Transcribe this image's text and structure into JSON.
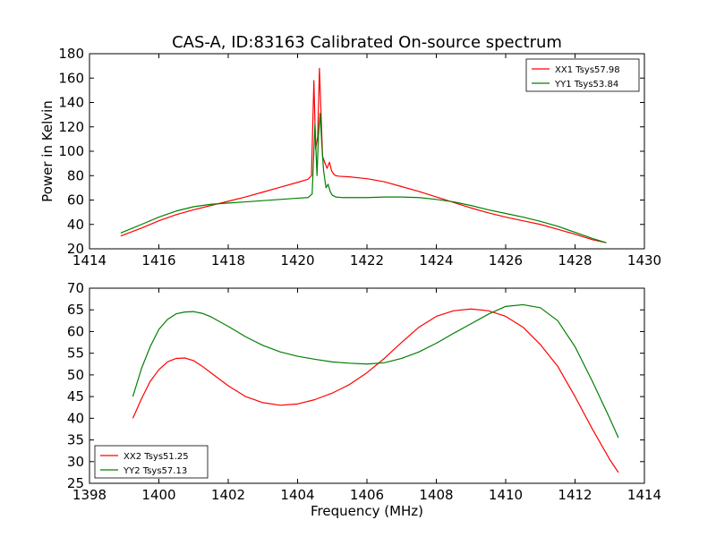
{
  "figure": {
    "title": "CAS-A, ID:83163 Calibrated On-source spectrum"
  },
  "chart_data": [
    {
      "type": "line",
      "title": "CAS-A, ID:83163 Calibrated On-source spectrum",
      "xlabel": "",
      "ylabel": "Power in Kelvin",
      "xlim": [
        1414,
        1430
      ],
      "ylim": [
        20,
        180
      ],
      "xticks": [
        1414,
        1416,
        1418,
        1420,
        1422,
        1424,
        1426,
        1428,
        1430
      ],
      "yticks": [
        20,
        40,
        60,
        80,
        100,
        120,
        140,
        160,
        180
      ],
      "grid": false,
      "legend_position": "upper right",
      "series": [
        {
          "name": "XX1 Tsys57.98",
          "color": "#ff0000",
          "x": [
            1414.9,
            1415.5,
            1416.0,
            1416.5,
            1417.0,
            1417.5,
            1418.0,
            1418.5,
            1419.0,
            1419.5,
            1420.0,
            1420.3,
            1420.4,
            1420.47,
            1420.52,
            1420.58,
            1420.63,
            1420.68,
            1420.72,
            1420.78,
            1420.85,
            1420.92,
            1420.98,
            1421.05,
            1421.1,
            1421.2,
            1421.5,
            1422.0,
            1422.5,
            1423.0,
            1423.5,
            1424.0,
            1424.5,
            1425.0,
            1425.5,
            1426.0,
            1426.5,
            1427.0,
            1427.5,
            1428.0,
            1428.5,
            1428.9
          ],
          "y": [
            30.5,
            37,
            43,
            48,
            52,
            55.5,
            59,
            62.5,
            66.5,
            70.5,
            74.5,
            77,
            80,
            158,
            102,
            112,
            168,
            128,
            96,
            91,
            86,
            91,
            84,
            81,
            80,
            79.5,
            79,
            77.5,
            75,
            71,
            67,
            62.5,
            58,
            53.5,
            49.5,
            46,
            43,
            40,
            36,
            32,
            27.5,
            25
          ]
        },
        {
          "name": "YY1 Tsys53.84",
          "color": "#008000",
          "x": [
            1414.9,
            1415.5,
            1416.0,
            1416.5,
            1417.0,
            1417.5,
            1418.0,
            1418.5,
            1419.0,
            1419.5,
            1420.0,
            1420.3,
            1420.42,
            1420.5,
            1420.56,
            1420.6,
            1420.65,
            1420.7,
            1420.75,
            1420.82,
            1420.88,
            1420.94,
            1421.0,
            1421.1,
            1421.3,
            1422.0,
            1422.5,
            1423.0,
            1423.5,
            1424.0,
            1424.5,
            1425.0,
            1425.5,
            1426.0,
            1426.5,
            1427.0,
            1427.5,
            1428.0,
            1428.5,
            1428.9
          ],
          "y": [
            33,
            40,
            46,
            51,
            54.5,
            56.5,
            57.5,
            58.5,
            59.5,
            60.5,
            61.5,
            62,
            65,
            122,
            80,
            112,
            131,
            105,
            84,
            70,
            73,
            67,
            64,
            62.5,
            62,
            62,
            62.5,
            62.5,
            62,
            60.5,
            58.5,
            55.5,
            52,
            49,
            46,
            42.5,
            38.5,
            33.5,
            28.5,
            25
          ]
        }
      ]
    },
    {
      "type": "line",
      "title": "",
      "xlabel": "Frequency (MHz)",
      "ylabel": "",
      "xlim": [
        1398,
        1414
      ],
      "ylim": [
        25,
        70
      ],
      "xticks": [
        1398,
        1400,
        1402,
        1404,
        1406,
        1408,
        1410,
        1412,
        1414
      ],
      "yticks": [
        25,
        30,
        35,
        40,
        45,
        50,
        55,
        60,
        65,
        70
      ],
      "grid": false,
      "legend_position": "lower left",
      "series": [
        {
          "name": "XX2 Tsys51.25",
          "color": "#ff0000",
          "x": [
            1399.25,
            1399.5,
            1399.75,
            1400.0,
            1400.25,
            1400.5,
            1400.75,
            1401.0,
            1401.25,
            1401.5,
            1402.0,
            1402.5,
            1403.0,
            1403.5,
            1404.0,
            1404.5,
            1405.0,
            1405.5,
            1406.0,
            1406.5,
            1407.0,
            1407.5,
            1408.0,
            1408.5,
            1409.0,
            1409.5,
            1410.0,
            1410.5,
            1411.0,
            1411.5,
            1412.0,
            1412.5,
            1413.0,
            1413.25
          ],
          "y": [
            40,
            44.5,
            48.5,
            51.2,
            53,
            53.8,
            53.9,
            53.3,
            52,
            50.5,
            47.5,
            45,
            43.6,
            43,
            43.3,
            44.3,
            45.8,
            47.8,
            50.5,
            53.8,
            57.5,
            61,
            63.5,
            64.8,
            65.2,
            64.8,
            63.5,
            61,
            57,
            52,
            45,
            37.5,
            30.5,
            27.5
          ]
        },
        {
          "name": "YY2 Tsys57.13",
          "color": "#008000",
          "x": [
            1399.25,
            1399.5,
            1399.75,
            1400.0,
            1400.25,
            1400.5,
            1400.75,
            1401.0,
            1401.25,
            1401.5,
            1402.0,
            1402.5,
            1403.0,
            1403.5,
            1404.0,
            1404.5,
            1405.0,
            1405.5,
            1406.0,
            1406.5,
            1407.0,
            1407.5,
            1408.0,
            1408.5,
            1409.0,
            1409.5,
            1410.0,
            1410.5,
            1411.0,
            1411.5,
            1412.0,
            1412.5,
            1413.0,
            1413.25
          ],
          "y": [
            45,
            51.5,
            56.5,
            60.5,
            62.8,
            64.1,
            64.5,
            64.6,
            64.2,
            63.4,
            61.2,
            58.8,
            56.8,
            55.3,
            54.3,
            53.6,
            53,
            52.7,
            52.5,
            52.8,
            53.8,
            55.3,
            57.3,
            59.6,
            61.8,
            64,
            65.8,
            66.2,
            65.5,
            62.5,
            56.5,
            48.5,
            40,
            35.5
          ]
        }
      ]
    }
  ]
}
